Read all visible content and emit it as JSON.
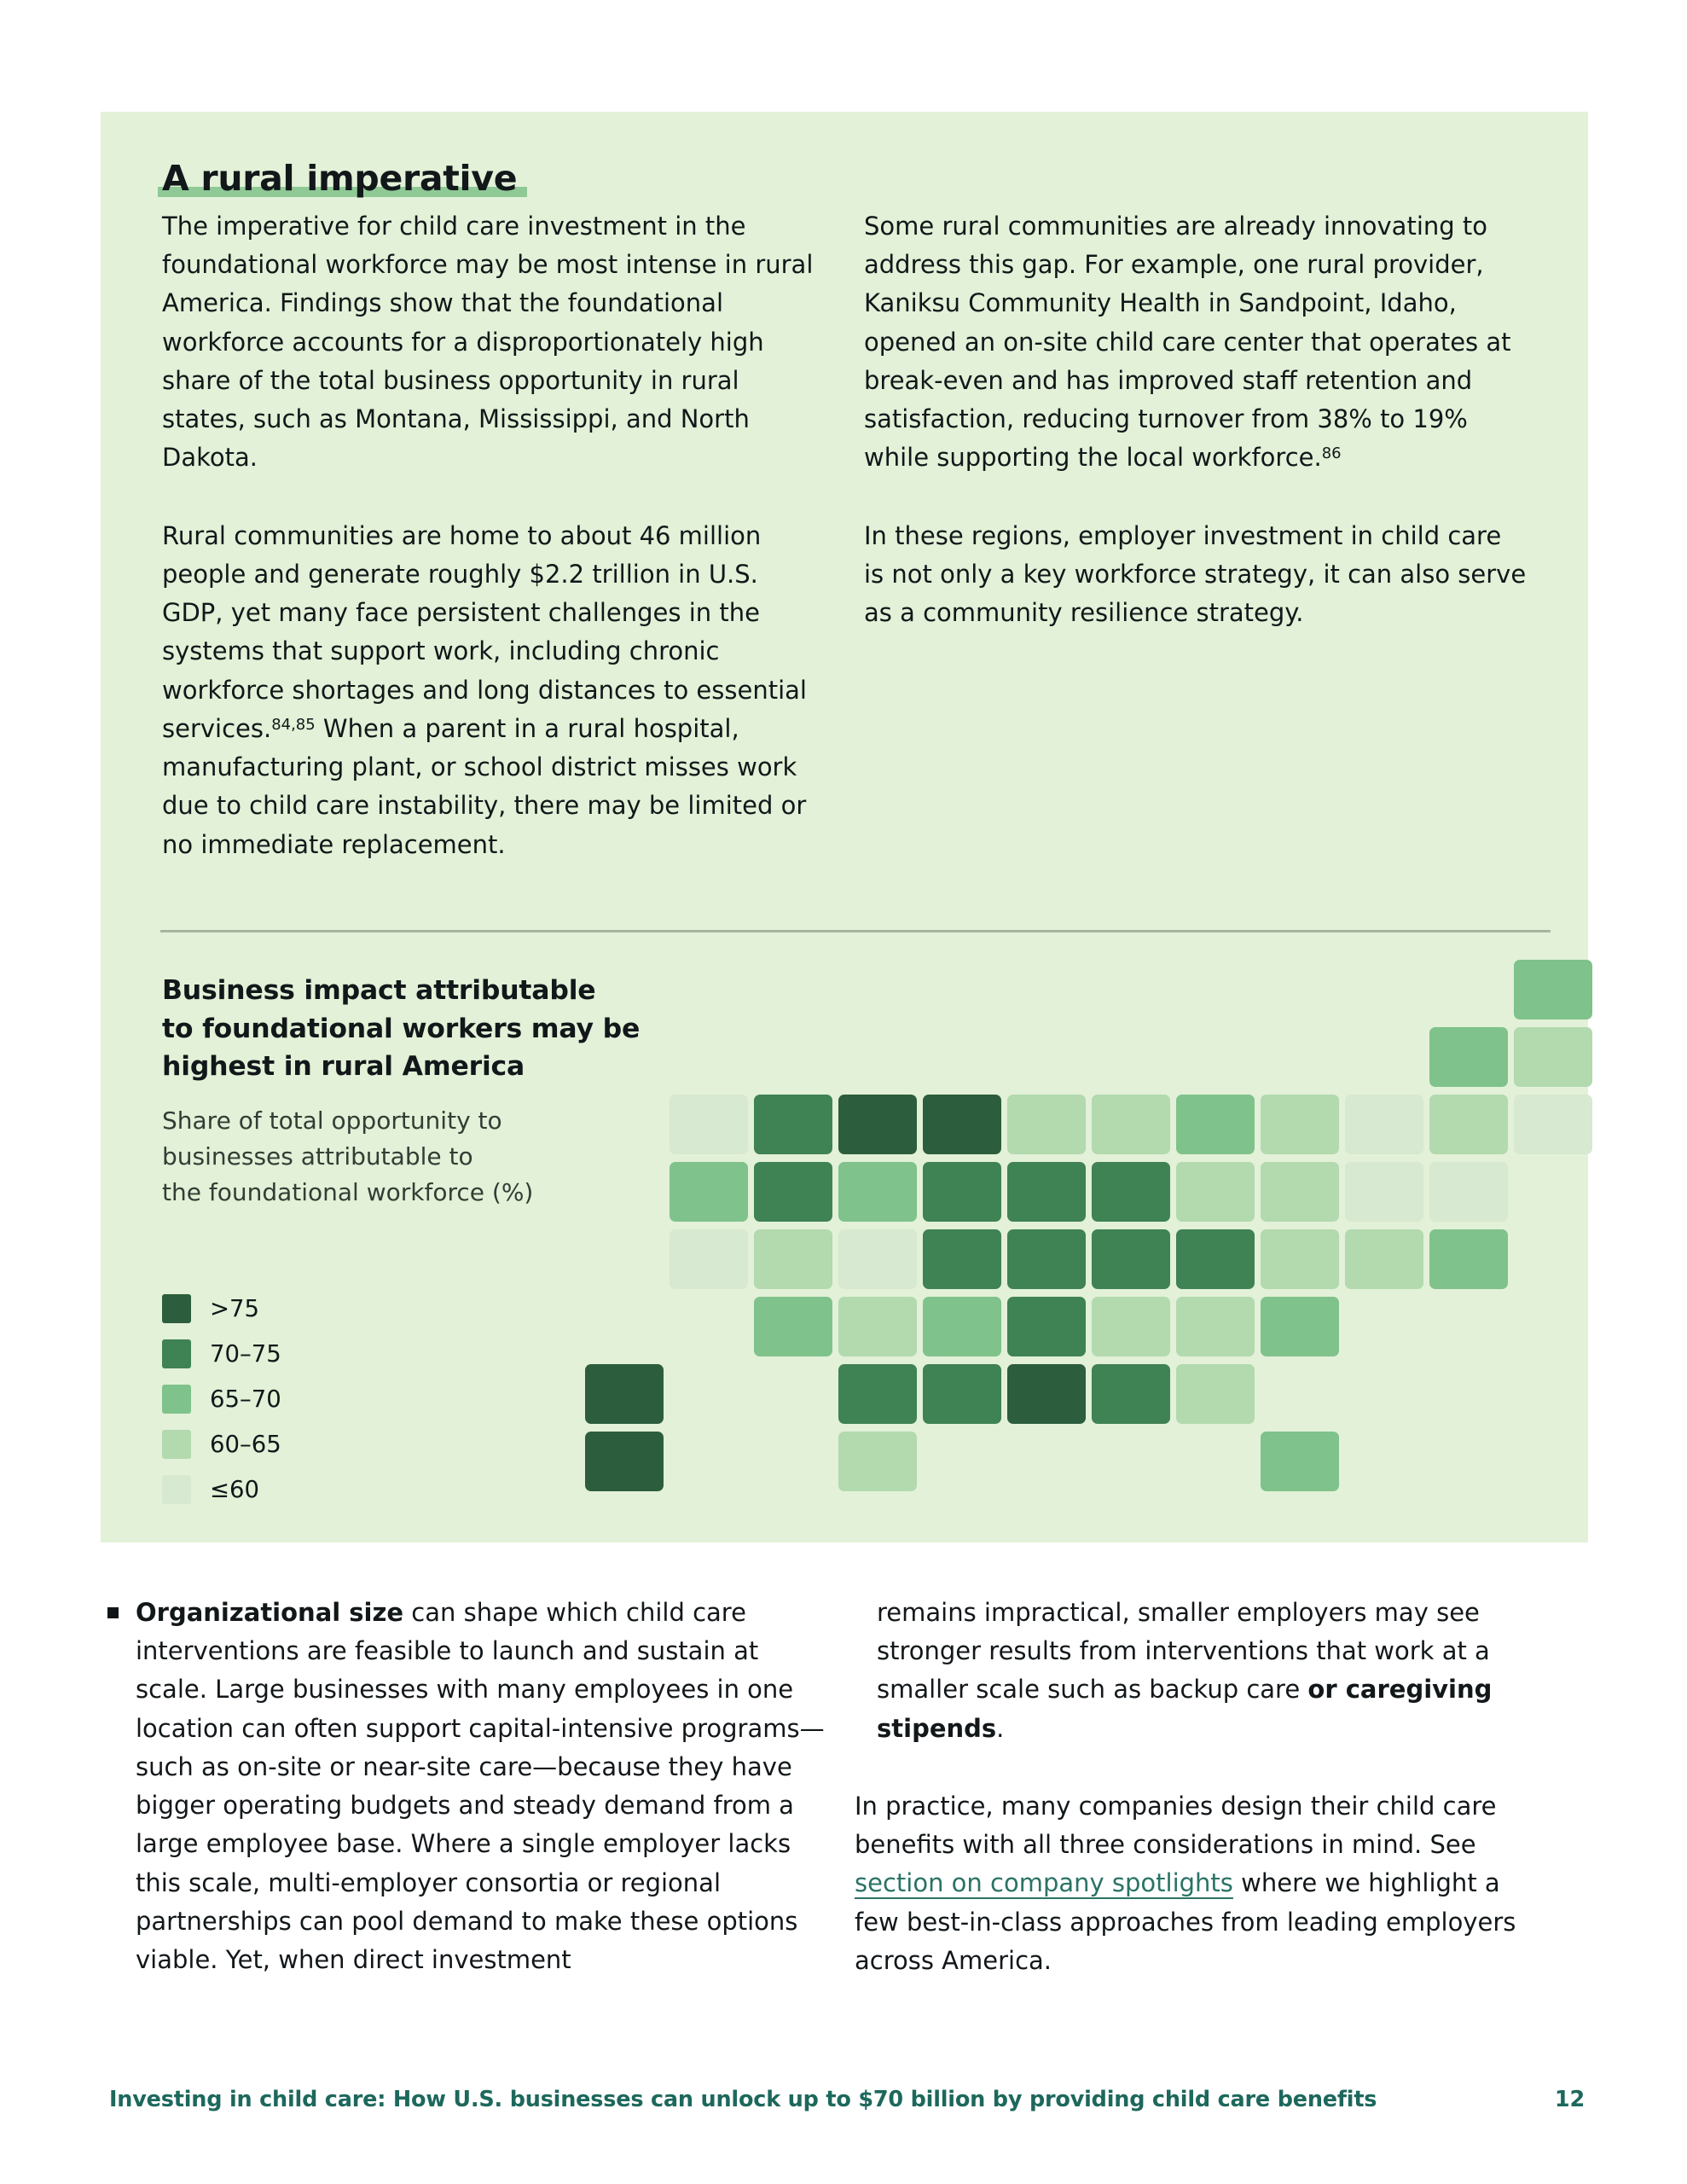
{
  "theme": {
    "panel_bg": "#e2f1d7",
    "title_underline": "#8fc996",
    "divider": "#a7b5a0",
    "footer_teal": "#1d685c",
    "link_teal": "#2a7365",
    "text_dark": "#12171a",
    "subtitle_dim": "#333d35"
  },
  "panel": {
    "title": "A rural imperative",
    "columns": {
      "left": [
        [
          {
            "t": "The imperative for child care investment in the foundational workforce may be most intense in rural America. Findings show that the foundational workforce accounts for a disproportionately high share of the total business opportunity in rural states, such as Montana, Mississippi, and North Dakota."
          }
        ],
        [
          {
            "t": "Rural communities are home to about 46 million people and generate roughly $2.2 trillion in U.S. GDP, yet many face persistent challenges in the systems that support work, including chronic workforce shortages and long distances to essential services."
          },
          {
            "t": "84,85",
            "sup": true
          },
          {
            "t": " When a parent in a rural hospital, manufacturing plant, or school district misses work due to child care instability, there may be limited or no immediate replacement."
          }
        ]
      ],
      "right": [
        [
          {
            "t": "Some rural communities are already innovating to address this gap. For example, one rural provider, Kaniksu Community Health in Sandpoint, Idaho, opened an on-site child care center that operates at break-even and has improved staff retention and satisfaction, reducing turnover from 38% to 19% while supporting the local workforce."
          },
          {
            "t": "86",
            "sup": true
          }
        ],
        [
          {
            "t": "In these regions, employer investment in child care is not only a key workforce strategy, it can also serve as a community resilience strategy."
          }
        ]
      ]
    }
  },
  "map": {
    "heading_lines": [
      "Business impact attributable",
      "to foundational workers may be",
      "highest in rural America"
    ],
    "subtitle_lines": [
      "Share of total opportunity to",
      "businesses attributable to",
      "the foundational workforce (%)"
    ],
    "legend": [
      {
        "label": ">75",
        "color": "#2c5d3c"
      },
      {
        "label": "70–75",
        "color": "#3f8253"
      },
      {
        "label": "65–70",
        "color": "#7fc28b"
      },
      {
        "label": "60–65",
        "color": "#b3d9af"
      },
      {
        "label": "≤60",
        "color": "#d7e9d0"
      }
    ],
    "states": {
      "MT": ">75",
      "ND": ">75",
      "MS": ">75",
      "AK": ">75",
      "HI": ">75",
      "ID": "70–75",
      "NV": "70–75",
      "SD": "70–75",
      "NE": "70–75",
      "IA": "70–75",
      "MO": "70–75",
      "AR": "70–75",
      "LA": "70–75",
      "OK": "70–75",
      "IN": "70–75",
      "KY": "70–75",
      "WV": "70–75",
      "AL": "70–75",
      "OR": "65–70",
      "WY": "65–70",
      "AZ": "65–70",
      "KS": "65–70",
      "WI": "65–70",
      "SC": "65–70",
      "FL": "65–70",
      "ME": "65–70",
      "VT": "65–70",
      "DE": "65–70",
      "UT": "60–65",
      "NM": "60–65",
      "TX": "60–65",
      "MN": "60–65",
      "IL": "60–65",
      "MI": "60–65",
      "OH": "60–65",
      "TN": "60–65",
      "VA": "60–65",
      "NC": "60–65",
      "GA": "60–65",
      "PA": "60–65",
      "NH": "60–65",
      "MA": "60–65",
      "MD": "60–65",
      "WA": "≤60",
      "CA": "≤60",
      "CO": "≤60",
      "NY": "≤60",
      "NJ": "≤60",
      "CT": "≤60",
      "RI": "≤60"
    }
  },
  "bottom": {
    "bullet": [
      {
        "t": "Organizational size",
        "b": true
      },
      {
        "t": " can shape which child care interventions are feasible to launch and sustain at scale. Large businesses with many employees in one location can often support capital-intensive programs—such as on-site or near-site care—because they have bigger operating budgets and steady demand from a large employee base. Where a single employer lacks this scale, multi-employer consortia or regional partnerships can pool demand to make these options viable. Yet, when direct investment"
      }
    ],
    "right_paras": [
      [
        {
          "t": "remains impractical, smaller employers may see stronger results from interventions that work at a smaller scale such as backup care "
        },
        {
          "t": "or caregiving stipends",
          "b": true
        },
        {
          "t": "."
        }
      ],
      [
        {
          "t": "In practice, many companies design their child care benefits with all three considerations in mind. See "
        },
        {
          "t": "section on company spotlights",
          "link": true
        },
        {
          "t": " where we highlight a few best-in-class approaches from leading employers across America."
        }
      ]
    ]
  },
  "footer": {
    "text": "Investing in child care: How U.S. businesses can unlock up to $70 billion by providing child care benefits",
    "page": "12"
  }
}
